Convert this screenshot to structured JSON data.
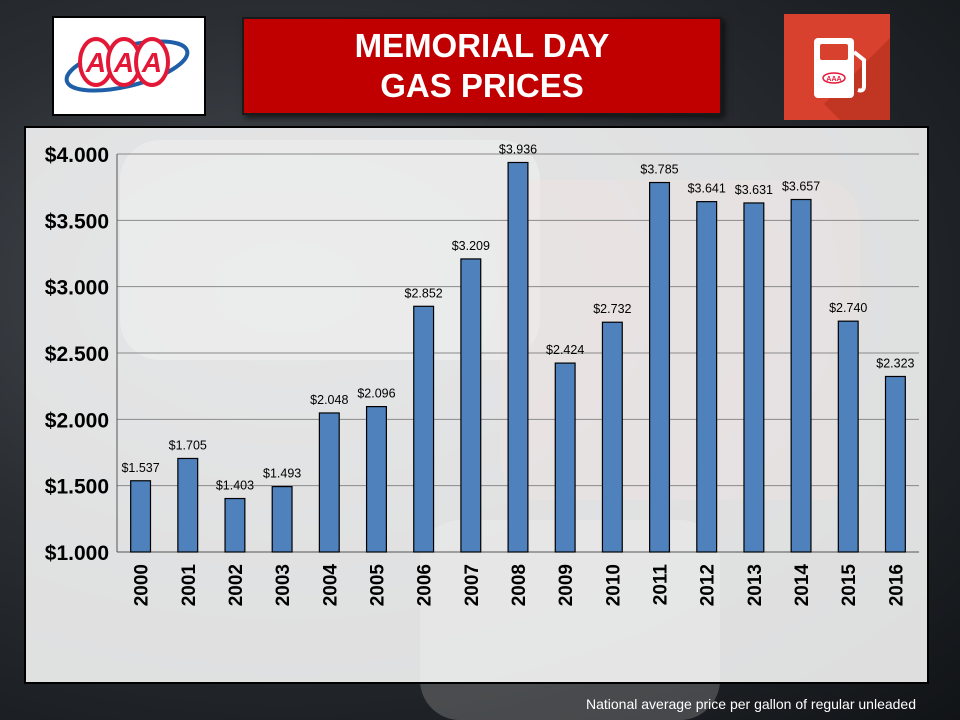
{
  "header": {
    "title_line1": "MEMORIAL DAY",
    "title_line2": "GAS PRICES",
    "logo_text": "AAA",
    "pump_logo_text": "AAA"
  },
  "footnote": "National average price per gallon of regular unleaded",
  "colors": {
    "bar": "#4f81bd",
    "bar_outline": "#000000",
    "title_bg": "#c00000",
    "pump_bg": "#d8412e",
    "aaa_red": "#e31837",
    "aaa_blue": "#1f5fa8"
  },
  "chart_data": {
    "type": "bar",
    "title": "",
    "xlabel": "",
    "ylabel": "",
    "categories": [
      "2000",
      "2001",
      "2002",
      "2003",
      "2004",
      "2005",
      "2006",
      "2007",
      "2008",
      "2009",
      "2010",
      "2011",
      "2012",
      "2013",
      "2014",
      "2015",
      "2016"
    ],
    "values": [
      1.537,
      1.705,
      1.403,
      1.493,
      2.048,
      2.096,
      2.852,
      3.209,
      3.936,
      2.424,
      2.732,
      3.785,
      3.641,
      3.631,
      3.657,
      2.74,
      2.323
    ],
    "data_labels": [
      "$1.537",
      "$1.705",
      "$1.403",
      "$1.493",
      "$2.048",
      "$2.096",
      "$2.852",
      "$3.209",
      "$3.936",
      "$2.424",
      "$2.732",
      "$3.785",
      "$3.641",
      "$3.631",
      "$3.657",
      "$2.740",
      "$2.323"
    ],
    "ylim": [
      1.0,
      4.0
    ],
    "yticks": [
      1.0,
      1.5,
      2.0,
      2.5,
      3.0,
      3.5,
      4.0
    ],
    "ytick_labels": [
      "$1.000",
      "$1.500",
      "$2.000",
      "$2.500",
      "$3.000",
      "$3.500",
      "$4.000"
    ],
    "grid": true,
    "legend": "none"
  }
}
